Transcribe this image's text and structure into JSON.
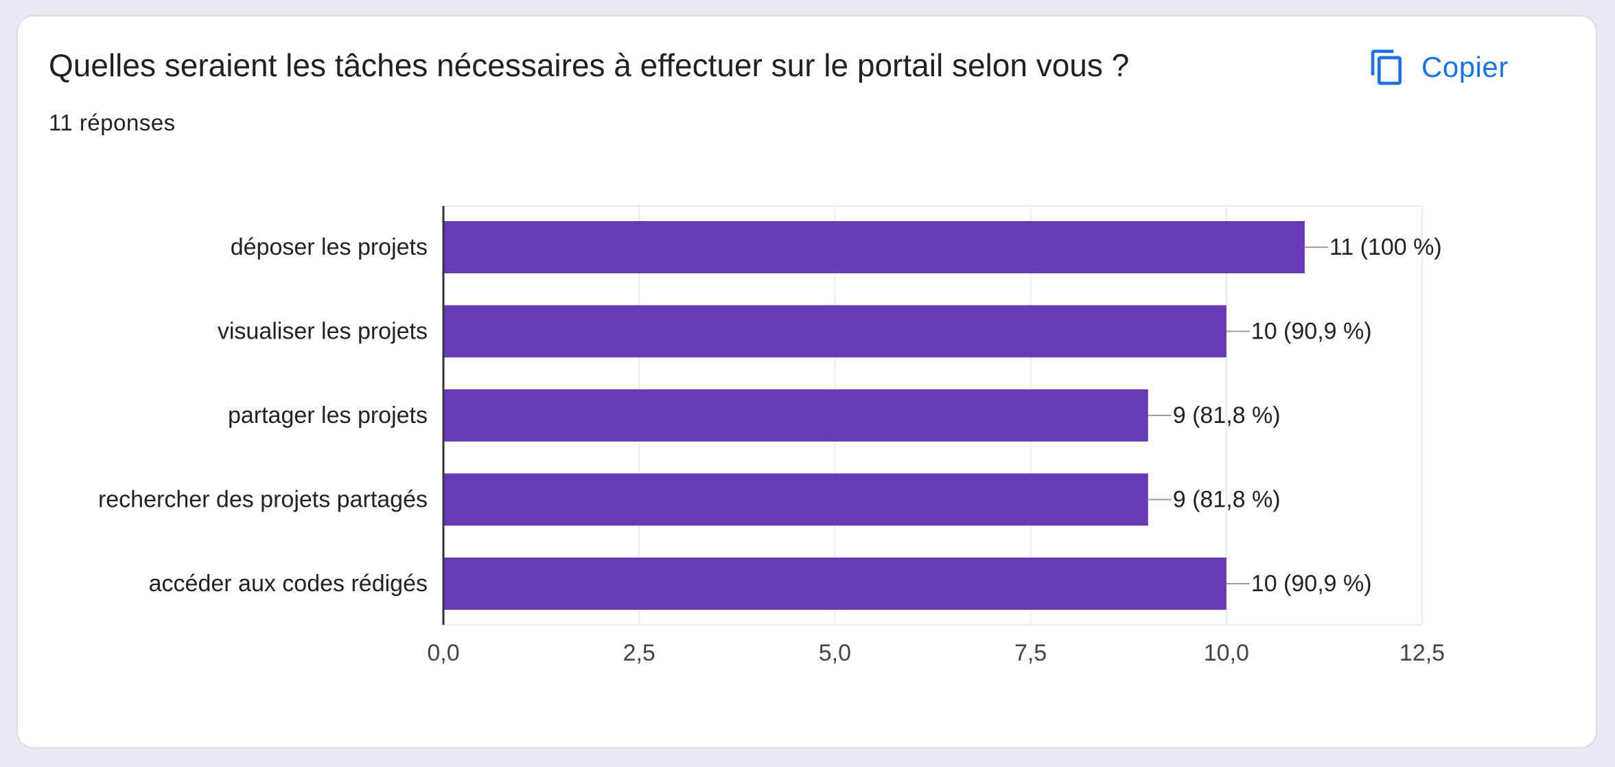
{
  "question": {
    "title": "Quelles seraient les tâches nécessaires à effectuer sur le portail selon vous ?",
    "response_count": "11 réponses"
  },
  "toolbar": {
    "copy_label": "Copier",
    "copy_icon": "copy-icon"
  },
  "colors": {
    "background": "#ede9f7",
    "bar": "#673ab7",
    "accent": "#1a73e8",
    "text": "#202124"
  },
  "chart_data": {
    "type": "bar",
    "orientation": "horizontal",
    "categories": [
      "déposer les projets",
      "visualiser les projets",
      "partager les projets",
      "rechercher des projets partagés",
      "accéder aux codes rédigés"
    ],
    "values": [
      11,
      10,
      9,
      9,
      10
    ],
    "data_labels": [
      "11 (100 %)",
      "10 (90,9 %)",
      "9 (81,8 %)",
      "9 (81,8 %)",
      "10 (90,9 %)"
    ],
    "xlim": [
      0,
      12.5
    ],
    "xticks": [
      0,
      2.5,
      5,
      7.5,
      10,
      12.5
    ],
    "xtick_labels": [
      "0,0",
      "2,5",
      "5,0",
      "7,5",
      "10,0",
      "12,5"
    ],
    "grid": true,
    "legend": "none",
    "bar_color": "#673ab7"
  }
}
